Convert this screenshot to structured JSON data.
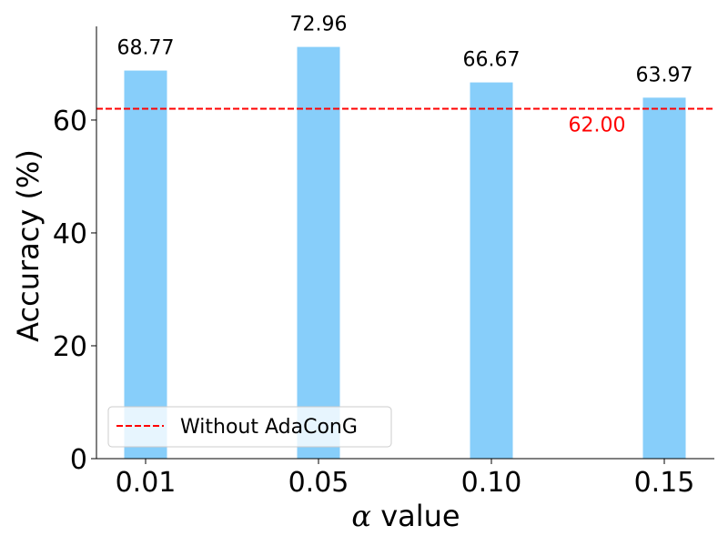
{
  "chart_data": {
    "type": "bar",
    "title": "",
    "xlabel_symbol": "α",
    "xlabel_text": " value",
    "ylabel": "Accuracy (%)",
    "categories": [
      "0.01",
      "0.05",
      "0.10",
      "0.15"
    ],
    "values": [
      68.77,
      72.96,
      66.67,
      63.97
    ],
    "value_labels": [
      "68.77",
      "72.96",
      "66.67",
      "63.97"
    ],
    "ylim": [
      0,
      76.6
    ],
    "yticks": [
      0,
      20,
      40,
      60
    ],
    "ytick_labels": [
      "0",
      "20",
      "40",
      "60"
    ],
    "reference_line": {
      "value": 62.0,
      "label": "62.00",
      "legend": "Without AdaConG",
      "color": "#ff0000",
      "style": "dashed"
    },
    "bar_color": "#87cefa",
    "legend_position": "lower-left",
    "grid": false
  }
}
